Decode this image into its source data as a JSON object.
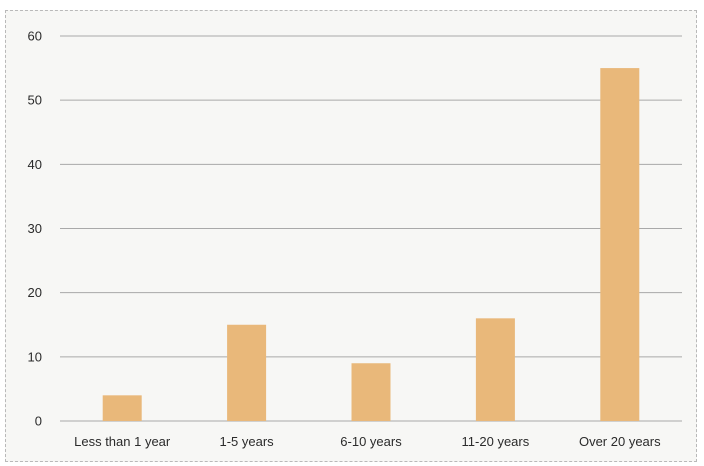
{
  "chart_data": {
    "type": "bar",
    "categories": [
      "Less than 1 year",
      "1-5 years",
      "6-10 years",
      "11-20 years",
      "Over 20 years"
    ],
    "values": [
      4,
      15,
      9,
      16,
      55
    ],
    "ylim": [
      0,
      60
    ],
    "yticks": [
      0,
      10,
      20,
      30,
      40,
      50,
      60
    ],
    "grid": true,
    "bar_color": "#e9b87a",
    "grid_color": "#a9a9a9"
  }
}
